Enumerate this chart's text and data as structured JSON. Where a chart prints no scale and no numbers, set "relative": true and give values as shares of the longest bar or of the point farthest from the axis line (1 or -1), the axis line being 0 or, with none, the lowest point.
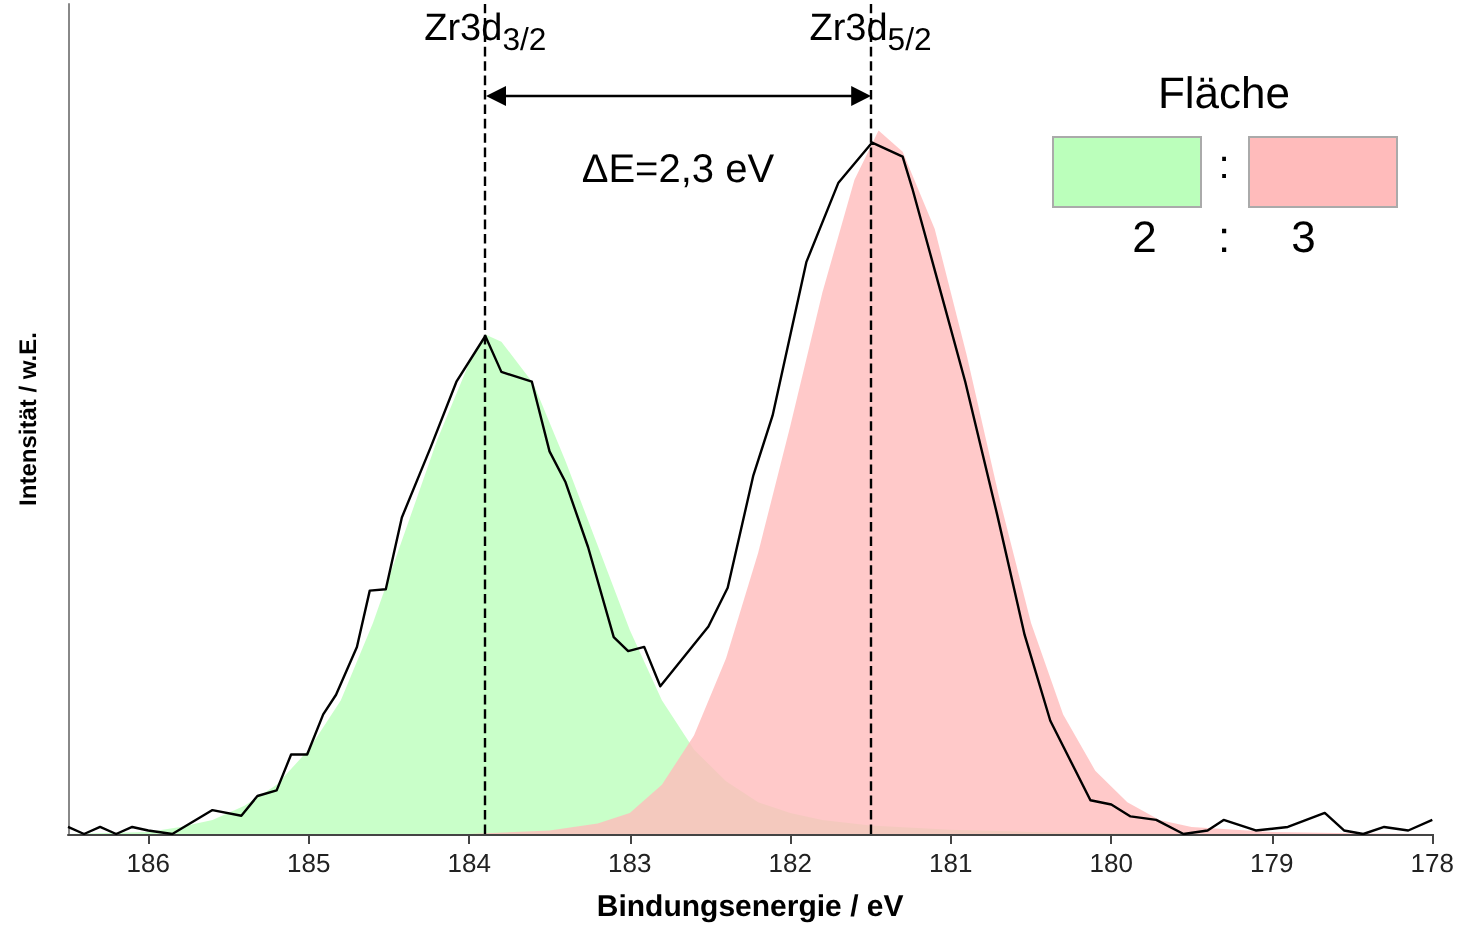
{
  "chart_data": {
    "type": "line",
    "xlabel": "Bindungsenergie / eV",
    "ylabel": "Intensität / w.E.",
    "relative": true,
    "tick_labels": "x",
    "grid": false,
    "xlim": [
      186.5,
      178
    ],
    "xticks": [
      186,
      185,
      184,
      183,
      182,
      181,
      180,
      179,
      178
    ],
    "series": [
      {
        "type": "area",
        "color": "#bbffbb",
        "x": [
          186.5,
          186.0,
          185.8,
          185.6,
          185.4,
          185.2,
          185.0,
          184.8,
          184.6,
          184.4,
          184.2,
          184.0,
          183.9,
          183.8,
          183.6,
          183.4,
          183.2,
          183.0,
          182.8,
          182.6,
          182.4,
          182.2,
          182.0,
          181.8,
          181.5,
          181.0,
          180.5,
          180.0,
          179.0,
          178.0
        ],
        "values": [
          0,
          0.003,
          0.01,
          0.02,
          0.04,
          0.07,
          0.12,
          0.19,
          0.3,
          0.43,
          0.56,
          0.67,
          0.71,
          0.7,
          0.64,
          0.53,
          0.41,
          0.29,
          0.19,
          0.12,
          0.075,
          0.045,
          0.03,
          0.02,
          0.012,
          0.006,
          0.003,
          0.001,
          0,
          0
        ]
      },
      {
        "type": "area",
        "color": "#ffbbbb",
        "x": [
          186.5,
          184.0,
          183.5,
          183.2,
          183.0,
          182.8,
          182.6,
          182.4,
          182.2,
          182.0,
          181.8,
          181.6,
          181.45,
          181.3,
          181.1,
          180.9,
          180.7,
          180.5,
          180.3,
          180.1,
          179.9,
          179.7,
          179.5,
          179.0,
          178.5,
          178.0
        ],
        "values": [
          0,
          0,
          0.005,
          0.015,
          0.03,
          0.07,
          0.14,
          0.25,
          0.4,
          0.58,
          0.77,
          0.93,
          1.0,
          0.97,
          0.86,
          0.68,
          0.48,
          0.3,
          0.17,
          0.09,
          0.045,
          0.02,
          0.01,
          0.003,
          0.001,
          0
        ]
      },
      {
        "color": "#000000",
        "x": [
          186.5,
          186.4,
          186.3,
          186.2,
          186.1,
          186.0,
          185.85,
          185.6,
          185.42,
          185.32,
          185.2,
          185.11,
          185.01,
          184.91,
          184.83,
          184.7,
          184.62,
          184.52,
          184.42,
          184.24,
          184.08,
          183.9,
          183.8,
          183.61,
          183.5,
          183.4,
          183.26,
          183.1,
          183.01,
          182.91,
          182.81,
          182.51,
          182.39,
          182.23,
          182.11,
          181.9,
          181.7,
          181.49,
          181.3,
          181.24,
          181.08,
          180.91,
          180.71,
          180.54,
          180.38,
          180.13,
          180.0,
          179.88,
          179.72,
          179.55,
          179.4,
          179.3,
          179.1,
          178.9,
          178.67,
          178.55,
          178.43,
          178.3,
          178.15,
          178.0
        ],
        "values": [
          0.01,
          0.0,
          0.01,
          0.0,
          0.01,
          0.005,
          0.0,
          0.034,
          0.026,
          0.054,
          0.062,
          0.113,
          0.113,
          0.17,
          0.198,
          0.266,
          0.346,
          0.348,
          0.45,
          0.55,
          0.643,
          0.708,
          0.657,
          0.643,
          0.544,
          0.5,
          0.408,
          0.28,
          0.26,
          0.266,
          0.21,
          0.295,
          0.35,
          0.51,
          0.595,
          0.813,
          0.926,
          0.983,
          0.963,
          0.918,
          0.785,
          0.643,
          0.453,
          0.283,
          0.161,
          0.048,
          0.042,
          0.025,
          0.02,
          0.0,
          0.005,
          0.02,
          0.005,
          0.01,
          0.03,
          0.005,
          0.0,
          0.01,
          0.005,
          0.02
        ]
      }
    ],
    "ref_lines": [
      {
        "axis": "x",
        "value": 183.9,
        "label": "Zr3d$_{3/2}$",
        "line_style": "dashed",
        "color": "#000000"
      },
      {
        "axis": "x",
        "value": 181.5,
        "label": "Zr3d$_{5/2}$",
        "line_style": "dashed",
        "color": "#000000"
      }
    ],
    "annotations": [
      "ΔE=2,3 eV",
      "Fläche",
      ":",
      "2 : 3"
    ]
  }
}
